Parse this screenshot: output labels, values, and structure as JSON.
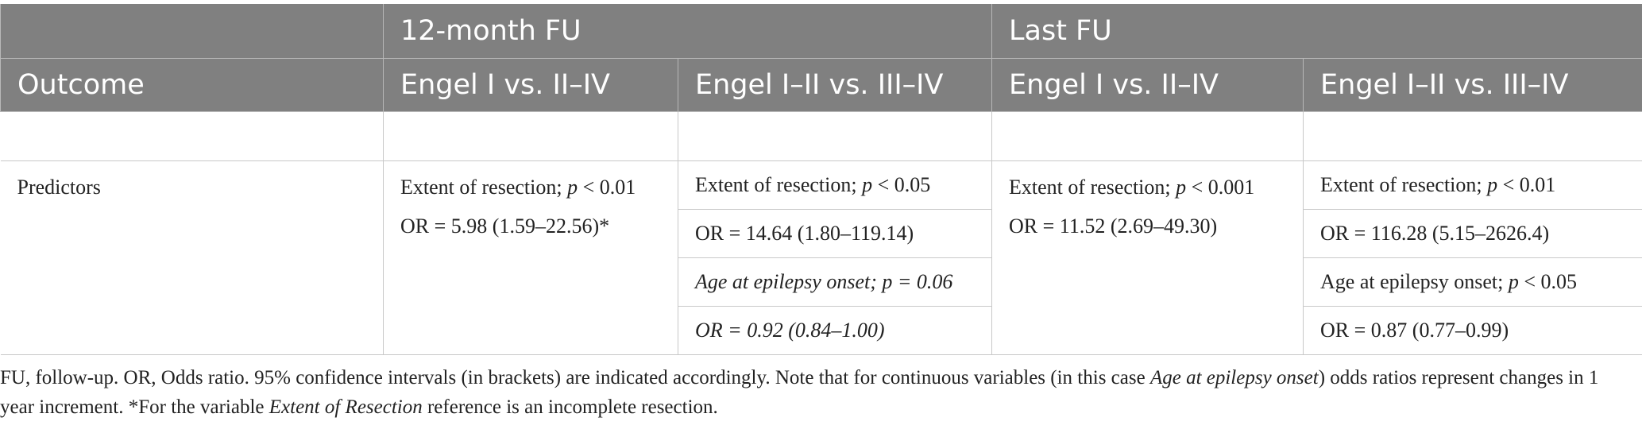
{
  "header": {
    "groups": [
      "12-month FU",
      "Last FU"
    ],
    "columns": [
      "Outcome",
      "Engel I vs. II–IV",
      "Engel I–II vs. III–IV",
      "Engel I vs. II–IV",
      "Engel I–II vs. III–IV"
    ]
  },
  "rows": [
    {
      "label": "Predictors",
      "cells": [
        [
          [
            "Extent of resection; ",
            {
              "italic": "p"
            },
            " < 0.01"
          ],
          [
            "OR = 5.98 (1.59–22.56)*"
          ]
        ],
        [
          [
            "Extent of resection; ",
            {
              "italic": "p"
            },
            " < 0.05"
          ],
          [
            "OR = 14.64 (1.80–119.14)"
          ],
          [
            {
              "italic": "Age at epilepsy onset; p = 0.06"
            }
          ],
          [
            {
              "italic": "OR = 0.92 (0.84–1.00)"
            }
          ]
        ],
        [
          [
            "Extent of resection; ",
            {
              "italic": "p"
            },
            " < 0.001"
          ],
          [
            "OR = 11.52 (2.69–49.30)"
          ]
        ],
        [
          [
            "Extent of resection; ",
            {
              "italic": "p"
            },
            " < 0.01"
          ],
          [
            "OR = 116.28 (5.15–2626.4)"
          ],
          [
            "Age at epilepsy onset; ",
            {
              "italic": "p"
            },
            " < 0.05"
          ],
          [
            "OR = 0.87 (0.77–0.99)"
          ]
        ]
      ]
    }
  ],
  "footnote": [
    "FU, follow-up. OR, Odds ratio. 95% confidence intervals (in brackets) are indicated accordingly. Note that for continuous variables (in this case ",
    {
      "italic": "Age at epilepsy onset"
    },
    ") odds ratios represent changes in 1 year increment. *For the variable ",
    {
      "italic": "Extent of Resection"
    },
    " reference is an incomplete resection."
  ]
}
